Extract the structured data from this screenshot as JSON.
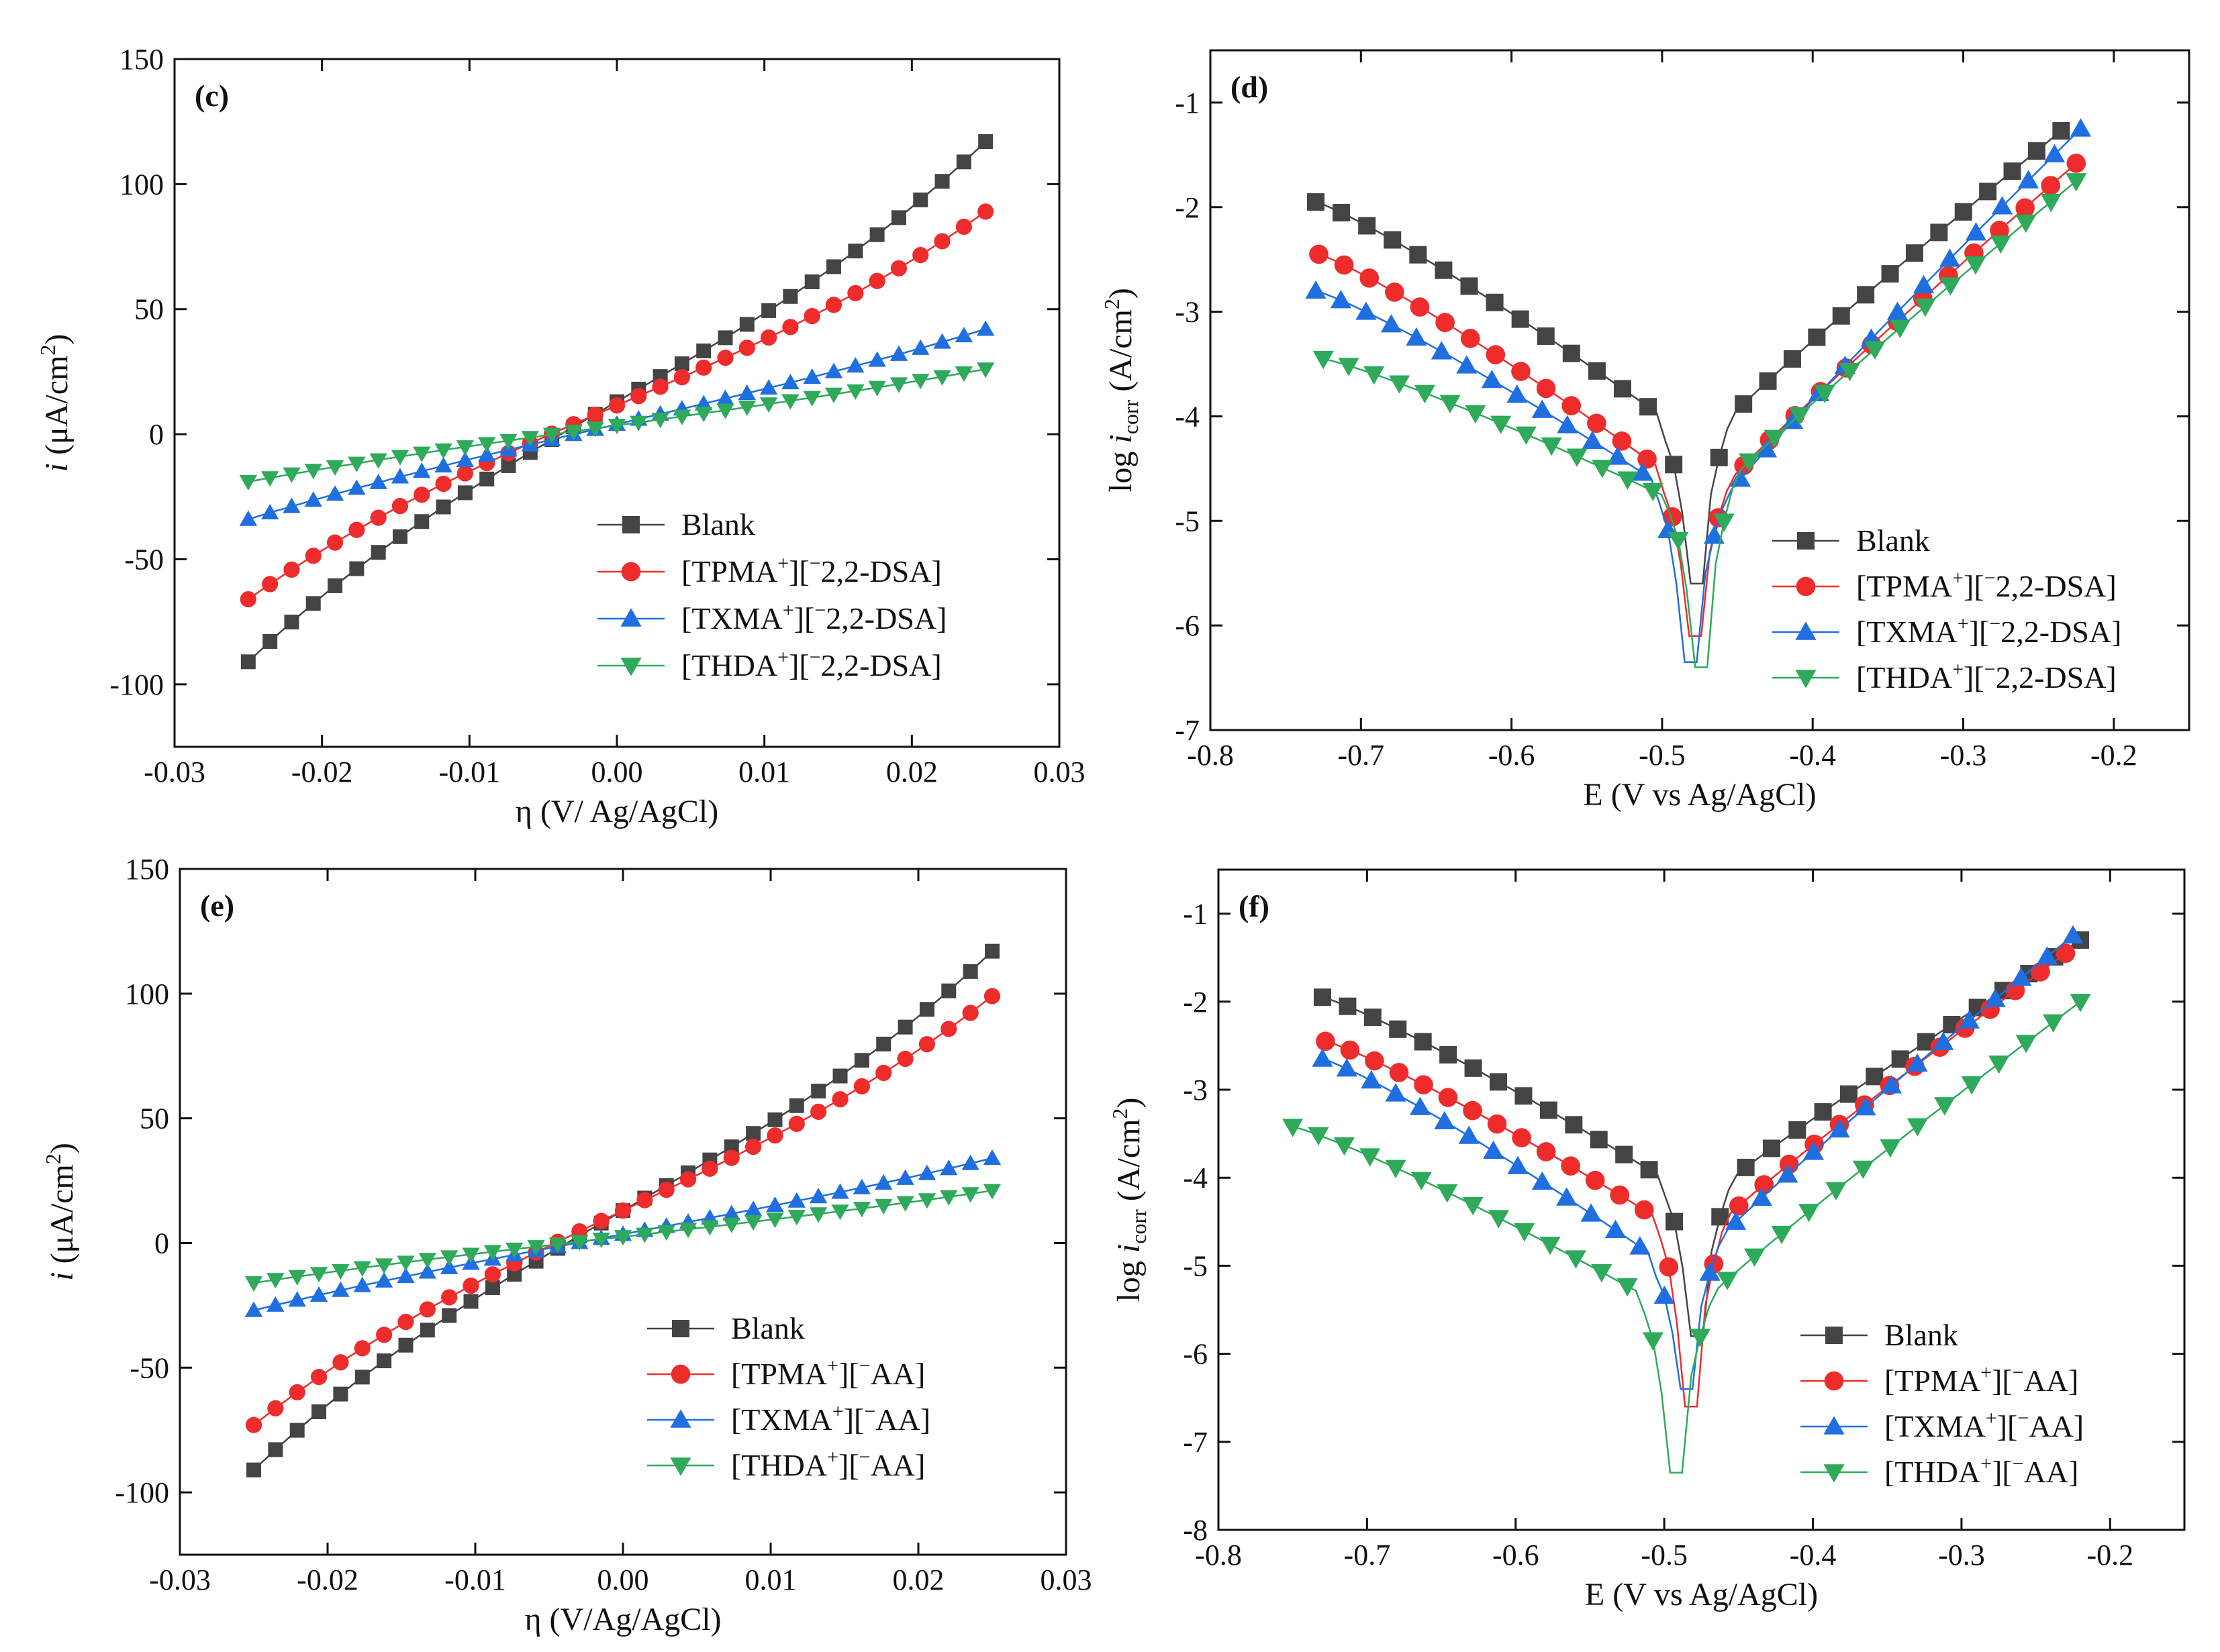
{
  "figure": {
    "description_free": true
  },
  "colors": {
    "blank": "#444444",
    "tpma": "#ee2c2c",
    "txma": "#1f6fe0",
    "thda": "#2eaa5a",
    "axis": "#111111"
  },
  "chart_data": [
    {
      "id": "c",
      "type": "line",
      "panel_label": "(c)",
      "xlabel": "η (V/ Ag/AgCl)",
      "ylabel": "i (μA/cm²)",
      "xlim": [
        -0.03,
        0.03
      ],
      "ylim": [
        -125,
        150
      ],
      "xticks": [
        -0.03,
        -0.02,
        -0.01,
        0.0,
        0.01,
        0.02,
        0.03
      ],
      "xtick_labels": [
        "-0.03",
        "-0.02",
        "-0.01",
        "0.00",
        "0.01",
        "0.02",
        "0.03"
      ],
      "yticks": [
        -100,
        -50,
        0,
        50,
        100,
        150
      ],
      "ytick_labels": [
        "-100",
        "-50",
        "0",
        "50",
        "100",
        "150"
      ],
      "legend": {
        "placement": "bottom-right"
      },
      "series": [
        {
          "name": "Blank",
          "legend": {
            "main": "Blank"
          },
          "color": "#444444",
          "marker": "square",
          "linear": {
            "x0": -0.025,
            "x1": 0.025,
            "y0": -91,
            "y1": 117,
            "k": 0.1
          }
        },
        {
          "name": "[TPMA⁺][⁻2,2-DSA]",
          "legend": {
            "main": "[TPMA",
            "sup": "+",
            "rest": "][",
            "sup2": "−",
            "rest2": "2,2-DSA]"
          },
          "color": "#ee2c2c",
          "marker": "circle",
          "linear": {
            "x0": -0.025,
            "x1": 0.025,
            "y0": -66,
            "y1": 89,
            "k": 0.1
          }
        },
        {
          "name": "[TXMA⁺][⁻2,2-DSA]",
          "legend": {
            "main": "[TXMA",
            "sup": "+",
            "rest": "][",
            "sup2": "−",
            "rest2": "2,2-DSA]"
          },
          "color": "#1f6fe0",
          "marker": "triangle-up",
          "linear": {
            "x0": -0.025,
            "x1": 0.025,
            "y0": -34,
            "y1": 42,
            "k": 0.05
          }
        },
        {
          "name": "[THDA⁺][⁻2,2-DSA]",
          "legend": {
            "main": "[THDA",
            "sup": "+",
            "rest": "][",
            "sup2": "−",
            "rest2": "2,2-DSA]"
          },
          "color": "#2eaa5a",
          "marker": "triangle-down",
          "linear": {
            "x0": -0.025,
            "x1": 0.025,
            "y0": -19,
            "y1": 26,
            "k": 0.05
          }
        }
      ]
    },
    {
      "id": "d",
      "type": "line",
      "panel_label": "(d)",
      "xlabel": "E (V vs Ag/AgCl)",
      "ylabel": "log i_corr (A/cm²)",
      "xlim": [
        -0.8,
        -0.15
      ],
      "ylim": [
        -7,
        -0.5
      ],
      "xticks": [
        -0.8,
        -0.7,
        -0.6,
        -0.5,
        -0.4,
        -0.3,
        -0.2
      ],
      "xtick_labels": [
        "-0.8",
        "-0.7",
        "-0.6",
        "-0.5",
        "-0.4",
        "-0.3",
        "-0.2"
      ],
      "yticks": [
        -7,
        -6,
        -5,
        -4,
        -3,
        -2,
        -1
      ],
      "ytick_labels": [
        "-7",
        "-6",
        "-5",
        "-4",
        "-3",
        "-2",
        "-1"
      ],
      "legend": {
        "placement": "bottom-right"
      },
      "series": [
        {
          "name": "Blank",
          "legend": {
            "main": "Blank"
          },
          "color": "#444444",
          "marker": "square",
          "tafel": {
            "emin": -0.73,
            "ymin": -1.95,
            "ecorr": -0.477,
            "ydip": -5.6,
            "yleft": -4.2,
            "yright": -4.0,
            "emax": -0.235,
            "ymax": -1.27
          }
        },
        {
          "name": "[TPMA⁺][⁻2,2-DSA]",
          "legend": {
            "main": "[TPMA",
            "sup": "+",
            "rest": "][",
            "sup2": "−",
            "rest2": "2,2-DSA]"
          },
          "color": "#ee2c2c",
          "marker": "circle",
          "tafel": {
            "emin": -0.728,
            "ymin": -2.45,
            "ecorr": -0.478,
            "ydip": -6.1,
            "yleft": -4.7,
            "yright": -4.6,
            "emax": -0.225,
            "ymax": -1.58
          }
        },
        {
          "name": "[TXMA⁺][⁻2,2-DSA]",
          "legend": {
            "main": "[TXMA",
            "sup": "+",
            "rest": "][",
            "sup2": "−",
            "rest2": "2,2-DSA]"
          },
          "color": "#1f6fe0",
          "marker": "triangle-up",
          "tafel": {
            "emin": -0.73,
            "ymin": -2.8,
            "ecorr": -0.481,
            "ydip": -6.35,
            "yleft": -4.8,
            "yright": -4.75,
            "emax": -0.222,
            "ymax": -1.25
          }
        },
        {
          "name": "[THDA⁺][⁻2,2-DSA]",
          "legend": {
            "main": "[THDA",
            "sup": "+",
            "rest": "][",
            "sup2": "−",
            "rest2": "2,2-DSA]"
          },
          "color": "#2eaa5a",
          "marker": "triangle-down",
          "tafel": {
            "emin": -0.725,
            "ymin": -3.45,
            "ecorr": -0.474,
            "ydip": -6.4,
            "yleft": -4.9,
            "yright": -4.55,
            "emax": -0.225,
            "ymax": -1.75
          }
        }
      ]
    },
    {
      "id": "e",
      "type": "line",
      "panel_label": "(e)",
      "xlabel": "η (V/Ag/AgCl)",
      "ylabel": "i (μA/cm²)",
      "xlim": [
        -0.03,
        0.03
      ],
      "ylim": [
        -125,
        150
      ],
      "xticks": [
        -0.03,
        -0.02,
        -0.01,
        0.0,
        0.01,
        0.02,
        0.03
      ],
      "xtick_labels": [
        "-0.03",
        "-0.02",
        "-0.01",
        "0.00",
        "0.01",
        "0.02",
        "0.03"
      ],
      "yticks": [
        -100,
        -50,
        0,
        50,
        100,
        150
      ],
      "ytick_labels": [
        "-100",
        "-50",
        "0",
        "50",
        "100",
        "150"
      ],
      "legend": {
        "placement": "bottom-right"
      },
      "series": [
        {
          "name": "Blank",
          "legend": {
            "main": "Blank"
          },
          "color": "#444444",
          "marker": "square",
          "linear": {
            "x0": -0.025,
            "x1": 0.025,
            "y0": -91,
            "y1": 117,
            "k": 0.1
          }
        },
        {
          "name": "[TPMA⁺][⁻AA]",
          "legend": {
            "main": "[TPMA",
            "sup": "+",
            "rest": "][",
            "sup2": "−",
            "rest2": "AA]"
          },
          "color": "#ee2c2c",
          "marker": "circle",
          "linear": {
            "x0": -0.025,
            "x1": 0.025,
            "y0": -73,
            "y1": 99,
            "k": 0.1
          }
        },
        {
          "name": "[TXMA⁺][⁻AA]",
          "legend": {
            "main": "[TXMA",
            "sup": "+",
            "rest": "][",
            "sup2": "−",
            "rest2": "AA]"
          },
          "color": "#1f6fe0",
          "marker": "triangle-up",
          "linear": {
            "x0": -0.025,
            "x1": 0.025,
            "y0": -27,
            "y1": 34,
            "k": 0.05
          }
        },
        {
          "name": "[THDA⁺][⁻AA]",
          "legend": {
            "main": "[THDA",
            "sup": "+",
            "rest": "][",
            "sup2": "−",
            "rest2": "AA]"
          },
          "color": "#2eaa5a",
          "marker": "triangle-down",
          "linear": {
            "x0": -0.025,
            "x1": 0.025,
            "y0": -16,
            "y1": 21,
            "k": 0.05
          }
        }
      ]
    },
    {
      "id": "f",
      "type": "line",
      "panel_label": "(f)",
      "xlabel": "E (V vs Ag/AgCl)",
      "ylabel": "log i_corr (A/cm²)",
      "xlim": [
        -0.8,
        -0.15
      ],
      "ylim": [
        -8,
        -0.5
      ],
      "xticks": [
        -0.8,
        -0.7,
        -0.6,
        -0.5,
        -0.4,
        -0.3,
        -0.2
      ],
      "xtick_labels": [
        "-0.8",
        "-0.7",
        "-0.6",
        "-0.5",
        "-0.4",
        "-0.3",
        "-0.2"
      ],
      "yticks": [
        -8,
        -7,
        -6,
        -5,
        -4,
        -3,
        -2,
        -1
      ],
      "ytick_labels": [
        "-8",
        "-7",
        "-6",
        "-5",
        "-4",
        "-3",
        "-2",
        "-1"
      ],
      "legend": {
        "placement": "bottom-right"
      },
      "series": [
        {
          "name": "Blank",
          "legend": {
            "main": "Blank"
          },
          "color": "#444444",
          "marker": "square",
          "tafel": {
            "emin": -0.73,
            "ymin": -1.95,
            "ecorr": -0.478,
            "ydip": -5.8,
            "yleft": -4.2,
            "yright": -4.0,
            "emax": -0.22,
            "ymax": -1.3
          }
        },
        {
          "name": "[TPMA⁺][⁻AA]",
          "legend": {
            "main": "[TPMA",
            "sup": "+",
            "rest": "][",
            "sup2": "−",
            "rest2": "AA]"
          },
          "color": "#ee2c2c",
          "marker": "circle",
          "tafel": {
            "emin": -0.728,
            "ymin": -2.45,
            "ecorr": -0.482,
            "ydip": -6.6,
            "yleft": -4.65,
            "yright": -4.45,
            "emax": -0.23,
            "ymax": -1.45
          }
        },
        {
          "name": "[TXMA⁺][⁻AA]",
          "legend": {
            "main": "[TXMA",
            "sup": "+",
            "rest": "][",
            "sup2": "−",
            "rest2": "AA]"
          },
          "color": "#1f6fe0",
          "marker": "triangle-up",
          "tafel": {
            "emin": -0.73,
            "ymin": -2.65,
            "ecorr": -0.485,
            "ydip": -6.4,
            "yleft": -5.1,
            "yright": -4.65,
            "emax": -0.225,
            "ymax": -1.25
          }
        },
        {
          "name": "[THDA⁺][⁻AA]",
          "legend": {
            "main": "[THDA",
            "sup": "+",
            "rest": "][",
            "sup2": "−",
            "rest2": "AA]"
          },
          "color": "#2eaa5a",
          "marker": "triangle-down",
          "tafel": {
            "emin": -0.75,
            "ymin": -3.42,
            "ecorr": -0.492,
            "ydip": -7.35,
            "yleft": -5.5,
            "yright": -5.3,
            "emax": -0.22,
            "ymax": -2.0
          }
        }
      ]
    }
  ]
}
